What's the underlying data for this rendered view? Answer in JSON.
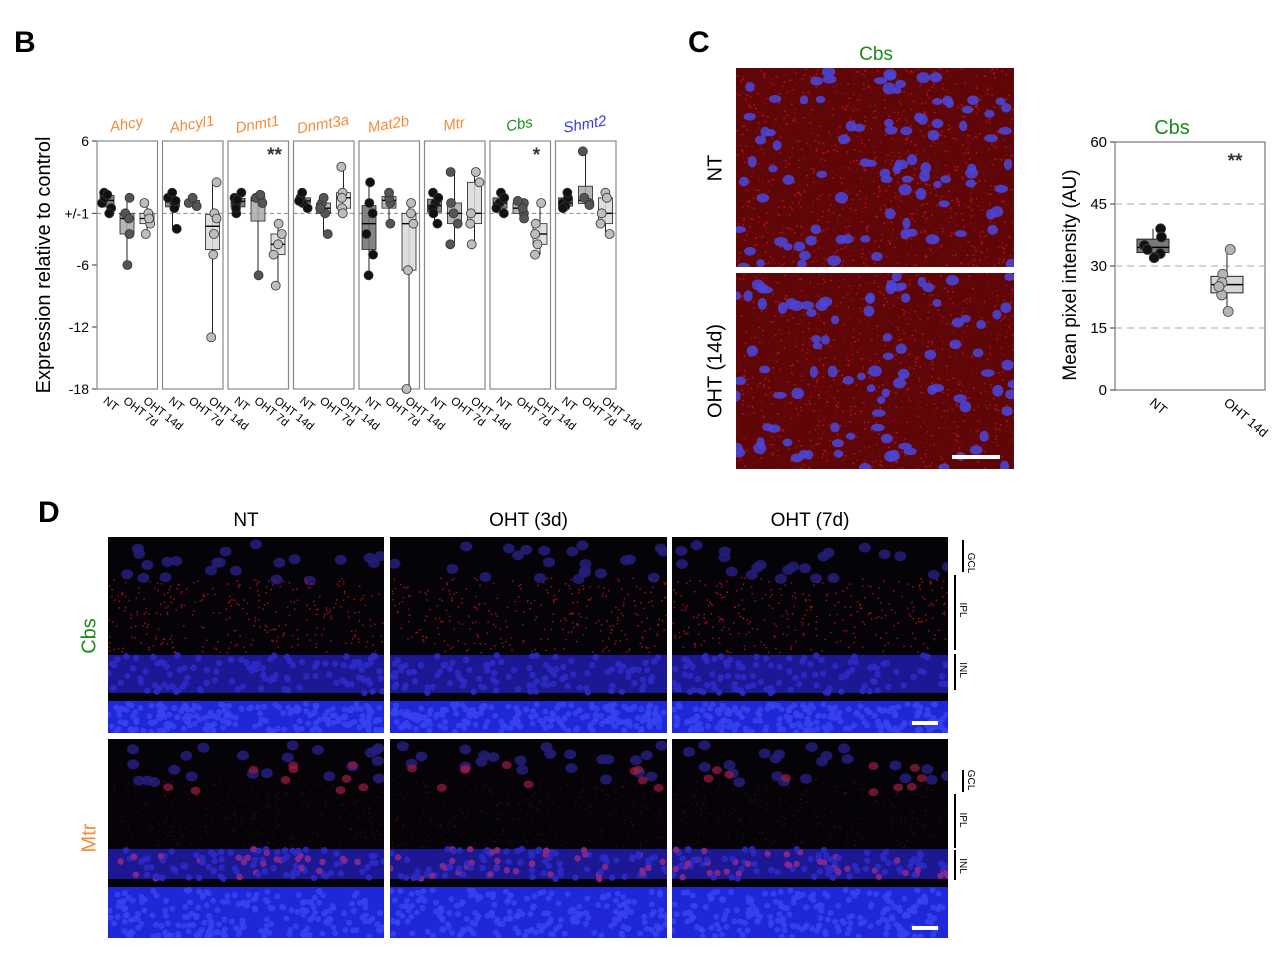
{
  "panel_b": {
    "letter": "B",
    "ylabel": "Expression relative to control",
    "y_ticks": [
      "6",
      "+/-1",
      "-6",
      "-12",
      "-18"
    ],
    "group_ticks": [
      "NT",
      "OHT 7d",
      "OHT 14d"
    ],
    "colors": {
      "orange": "#f28c3c",
      "green": "#1a8a1a",
      "blue": "#3a3ad8"
    }
  },
  "panel_c": {
    "letter": "C",
    "image_title": "Cbs",
    "row_labels": [
      "NT",
      "OHT (14d)"
    ],
    "chart_title": "Cbs",
    "ylabel": "Mean pixel intensity (AU)",
    "significance": "**"
  },
  "panel_d": {
    "letter": "D",
    "columns": [
      "NT",
      "OHT (3d)",
      "OHT (7d)"
    ],
    "rows": [
      {
        "label": "Cbs",
        "color": "#1a8a1a"
      },
      {
        "label": "Mtr",
        "color": "#f28c3c"
      }
    ],
    "layers": [
      "GCL",
      "IPL",
      "INL"
    ]
  },
  "chart_data": [
    {
      "type": "box",
      "panel": "B",
      "ylabel": "Expression relative to control",
      "y_tick_labels": [
        "6",
        "+/-1",
        "-6",
        "-12",
        "-18"
      ],
      "ylim": [
        -18,
        6
      ],
      "categories": [
        "NT",
        "OHT 7d",
        "OHT 14d"
      ],
      "genes": [
        {
          "name": "Ahcy",
          "color": "orange",
          "sig": "",
          "NT": [
            0,
            -0.5,
            0.5,
            1,
            -1,
            0.8
          ],
          "OHT 7d": [
            -1,
            -3,
            0.5,
            -6,
            -1.5
          ],
          "OHT 14d": [
            -1,
            -2,
            0,
            -3,
            -1.5
          ]
        },
        {
          "name": "Ahcyl1",
          "color": "orange",
          "sig": "",
          "NT": [
            0,
            0.5,
            -0.5,
            1,
            -2.5,
            0.2
          ],
          "OHT 7d": [
            0,
            0.5,
            -0.3
          ],
          "OHT 14d": [
            -1,
            -3,
            -5,
            -1.5,
            2,
            -13
          ]
        },
        {
          "name": "Dnmt1",
          "color": "orange",
          "sig": "**",
          "NT": [
            0,
            1,
            -1,
            0.5,
            -0.5,
            0.3
          ],
          "OHT 7d": [
            0.5,
            0,
            -7,
            0.8
          ],
          "OHT 14d": [
            -3,
            -5,
            -8,
            -2,
            -4
          ]
        },
        {
          "name": "Dnmt3a",
          "color": "orange",
          "sig": "",
          "NT": [
            0,
            0.5,
            -0.5,
            0.2,
            1
          ],
          "OHT 7d": [
            0,
            -1,
            -3,
            0.5,
            -0.5
          ],
          "OHT 14d": [
            1,
            3.5,
            -0.5,
            -1,
            0.5
          ]
        },
        {
          "name": "Mat2b",
          "color": "orange",
          "sig": "",
          "NT": [
            0,
            2,
            -3,
            -5,
            -7,
            -1
          ],
          "OHT 7d": [
            0,
            -2,
            0.5,
            1
          ],
          "OHT 14d": [
            -1,
            -2,
            -6.5,
            0,
            -18
          ]
        },
        {
          "name": "Mtr",
          "color": "orange",
          "sig": "",
          "NT": [
            0,
            1,
            -0.5,
            -1,
            -2,
            0.5
          ],
          "OHT 7d": [
            3,
            -2,
            -4,
            -1,
            0
          ],
          "OHT 14d": [
            -2,
            2,
            -4,
            3,
            -1
          ]
        },
        {
          "name": "Cbs",
          "color": "green",
          "sig": "*",
          "NT": [
            0,
            1,
            -0.5,
            0.5,
            -1
          ],
          "OHT 7d": [
            0,
            -1,
            -1.5,
            -0.5,
            0.2
          ],
          "OHT 14d": [
            -3,
            -4,
            -2,
            -5,
            0
          ]
        },
        {
          "name": "Shmt2",
          "color": "blue",
          "sig": "",
          "NT": [
            0,
            0.5,
            -0.3,
            1,
            -0.5
          ],
          "OHT 7d": [
            0,
            5,
            0.5,
            -0.2
          ],
          "OHT 14d": [
            -1,
            1,
            -2,
            -3,
            0.5
          ]
        }
      ]
    },
    {
      "type": "box",
      "panel": "C",
      "title": "Cbs",
      "ylabel": "Mean pixel intensity (AU)",
      "ylim": [
        0,
        60
      ],
      "y_ticks": [
        0,
        15,
        30,
        45,
        60
      ],
      "grid": true,
      "categories": [
        "NT",
        "OHT 14d"
      ],
      "series": [
        {
          "name": "NT",
          "values": [
            39,
            35,
            33,
            34,
            37,
            32
          ]
        },
        {
          "name": "OHT 14d",
          "values": [
            34,
            28,
            26,
            23,
            19,
            25
          ]
        }
      ],
      "significance": "**"
    }
  ]
}
